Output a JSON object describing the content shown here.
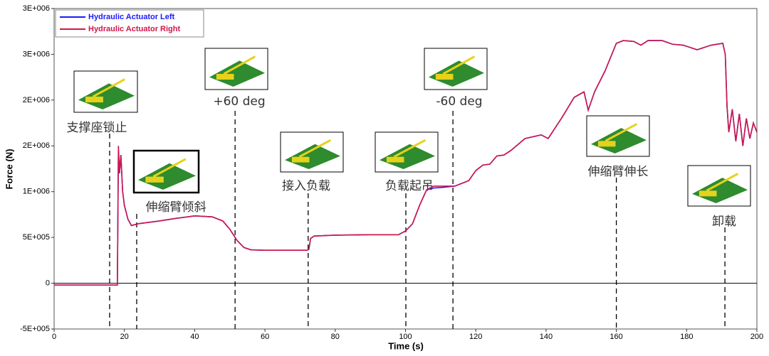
{
  "chart_data": {
    "type": "line",
    "x_label": "Time (s)",
    "y_label": "Force (N)",
    "xlim": [
      0,
      200
    ],
    "ylim": [
      -500000,
      3000000
    ],
    "xticks": [
      0,
      20,
      40,
      60,
      80,
      100,
      120,
      140,
      160,
      180,
      200
    ],
    "yticks": [
      {
        "value": -500000,
        "label": "-5E+005"
      },
      0,
      {
        "value": 500000,
        "label": "5E+005"
      },
      {
        "value": 1000000,
        "label": "1E+006"
      },
      {
        "value": 1500000,
        "label": "2E+006"
      },
      {
        "value": 2000000,
        "label": "2E+006"
      },
      {
        "value": 2500000,
        "label": "3E+006"
      },
      {
        "value": 3000000,
        "label": "3E+006"
      }
    ],
    "legend": "top-left",
    "x": [
      0,
      18,
      18.3,
      18.6,
      19,
      19.5,
      20,
      21,
      22,
      24,
      30,
      35,
      40,
      45,
      48,
      50,
      52,
      54,
      56,
      60,
      72,
      72.5,
      73,
      74,
      80,
      90,
      98,
      100,
      102,
      104,
      106,
      108,
      110,
      114,
      116,
      118,
      120,
      122,
      124,
      126,
      128,
      130,
      134,
      138.6,
      140.6,
      144.7,
      148,
      150.8,
      152,
      153.8,
      156.8,
      160,
      162,
      165,
      167,
      169,
      173,
      176,
      179,
      183,
      187,
      190.3,
      191,
      191.5,
      192,
      193,
      194,
      195,
      196,
      197,
      198,
      199,
      200
    ],
    "series": [
      {
        "name": "Hydraulic Actuator Left",
        "color": "#1a1aff",
        "values": [
          -20000,
          -20000,
          1450000,
          1200000,
          1400000,
          1000000,
          850000,
          700000,
          630000,
          650000,
          680000,
          710000,
          735000,
          725000,
          680000,
          590000,
          470000,
          390000,
          365000,
          360000,
          360000,
          370000,
          490000,
          515000,
          525000,
          530000,
          530000,
          570000,
          650000,
          850000,
          1020000,
          1040000,
          1045000,
          1060000,
          1090000,
          1120000,
          1230000,
          1290000,
          1300000,
          1390000,
          1400000,
          1450000,
          1580000,
          1620000,
          1580000,
          1820000,
          2030000,
          2090000,
          1890000,
          2090000,
          2320000,
          2620000,
          2650000,
          2640000,
          2600000,
          2650000,
          2650000,
          2610000,
          2600000,
          2550000,
          2600000,
          2620000,
          2500000,
          1930000,
          1650000,
          1900000,
          1550000,
          1850000,
          1500000,
          1800000,
          1580000,
          1750000,
          1650000
        ]
      },
      {
        "name": "Hydraulic Actuator Right",
        "color": "#d0164a",
        "values": [
          -20000,
          -20000,
          1500000,
          1200000,
          1400000,
          1000000,
          850000,
          700000,
          630000,
          650000,
          680000,
          710000,
          735000,
          725000,
          680000,
          590000,
          470000,
          390000,
          365000,
          360000,
          360000,
          370000,
          490000,
          515000,
          525000,
          530000,
          530000,
          570000,
          650000,
          850000,
          1020000,
          1060000,
          1060000,
          1060000,
          1090000,
          1120000,
          1230000,
          1290000,
          1300000,
          1390000,
          1400000,
          1450000,
          1580000,
          1620000,
          1580000,
          1820000,
          2030000,
          2090000,
          1890000,
          2090000,
          2320000,
          2620000,
          2650000,
          2640000,
          2600000,
          2650000,
          2650000,
          2610000,
          2600000,
          2550000,
          2600000,
          2620000,
          2500000,
          1930000,
          1650000,
          1900000,
          1550000,
          1850000,
          1500000,
          1800000,
          1580000,
          1750000,
          1650000
        ]
      }
    ],
    "annotations": [
      {
        "x": 15.8,
        "text": "支撑座锁止"
      },
      {
        "x": 23.5,
        "text": "伸缩臂倾斜"
      },
      {
        "x": 51.5,
        "text": "+60 deg"
      },
      {
        "x": 72.3,
        "text": "接入负载"
      },
      {
        "x": 100.1,
        "text": "负载起吊"
      },
      {
        "x": 113.5,
        "text": "-60 deg"
      },
      {
        "x": 160,
        "text": "伸缩臂伸长"
      },
      {
        "x": 190.9,
        "text": "卸载"
      }
    ]
  }
}
